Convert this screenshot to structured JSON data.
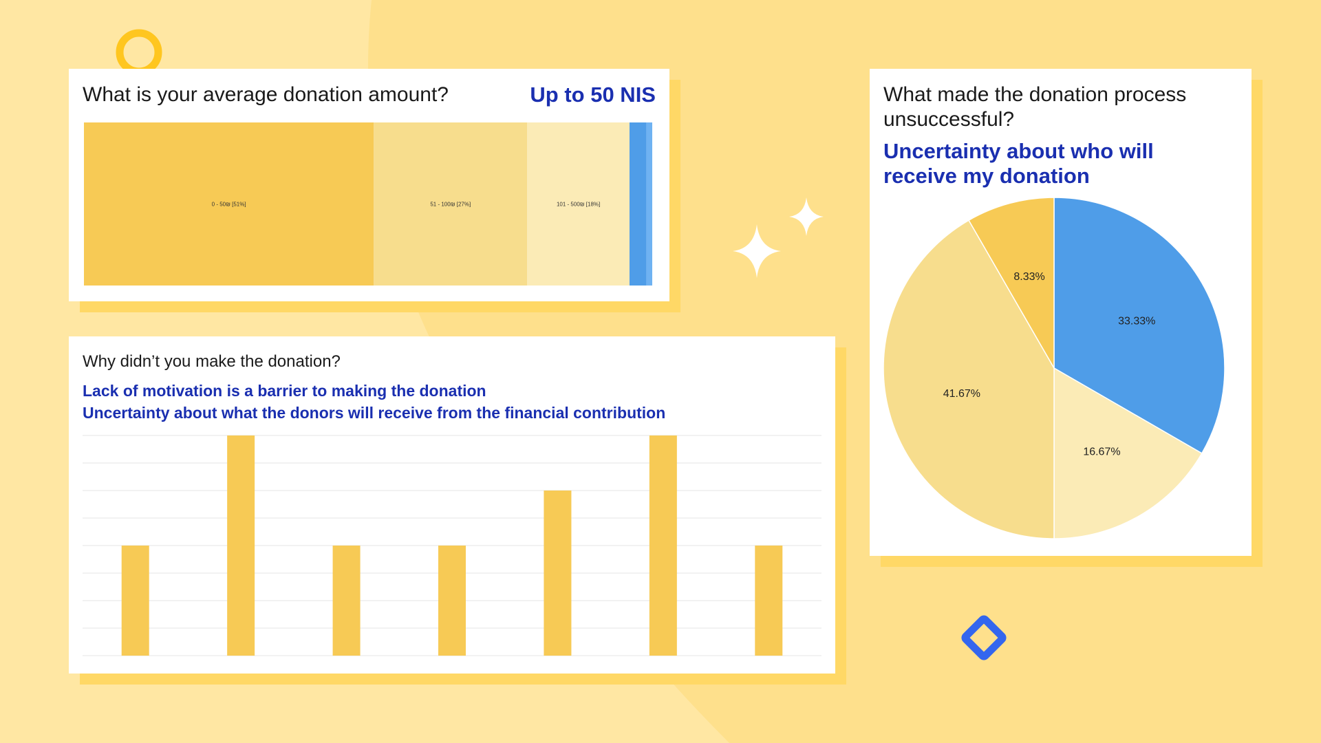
{
  "colors": {
    "background": "#FEE08C",
    "background_light": "#FFE7A3",
    "card_shadow": "#FFD866",
    "gold": "#F7CA55",
    "light_gold": "#F7DD8D",
    "pale_gold": "#FBEBB6",
    "blue": "#4F9DE8",
    "light_blue": "#6FB2F2",
    "answer_blue": "#1A2FB0",
    "accent_blue": "#3366EE",
    "grid": "#E6E6E6"
  },
  "card1": {
    "question": "What is your average donation amount?",
    "answer": "Up to 50 NIS"
  },
  "card2": {
    "question": "Why didn’t you make the donation?",
    "answers": [
      "Lack of motivation is a barrier to making the donation",
      "Uncertainty about what the donors will receive from the financial contribution"
    ]
  },
  "card3": {
    "question_line1": "What made the donation process",
    "question_line2": "unsuccessful?",
    "answer_line1": "Uncertainty about who will",
    "answer_line2": "receive my donation"
  },
  "chart_data": [
    {
      "type": "bar",
      "orientation": "stacked-horizontal-treemap",
      "segments": [
        {
          "label": "0 - 50₪ [51%]",
          "value": 51,
          "color": "#F7CA55"
        },
        {
          "label": "51 - 100₪ [27%]",
          "value": 27,
          "color": "#F7DD8D"
        },
        {
          "label": "101 - 500₪ [18%]",
          "value": 18,
          "color": "#FBEBB6"
        },
        {
          "label": "",
          "value": 3,
          "color": "#4F9DE8"
        },
        {
          "label": "",
          "value": 1,
          "color": "#6FB2F2"
        }
      ]
    },
    {
      "type": "bar",
      "values": [
        2,
        4,
        2,
        2,
        3,
        4,
        2
      ],
      "ylim": [
        0,
        4
      ],
      "grid": true,
      "color": "#F7CA55"
    },
    {
      "type": "pie",
      "slices": [
        {
          "label": "33.33%",
          "value": 33.33,
          "color": "#4F9DE8"
        },
        {
          "label": "16.67%",
          "value": 16.67,
          "color": "#FBEBB6"
        },
        {
          "label": "41.67%",
          "value": 41.67,
          "color": "#F7DD8D"
        },
        {
          "label": "8.33%",
          "value": 8.33,
          "color": "#F7CA55"
        }
      ]
    }
  ]
}
